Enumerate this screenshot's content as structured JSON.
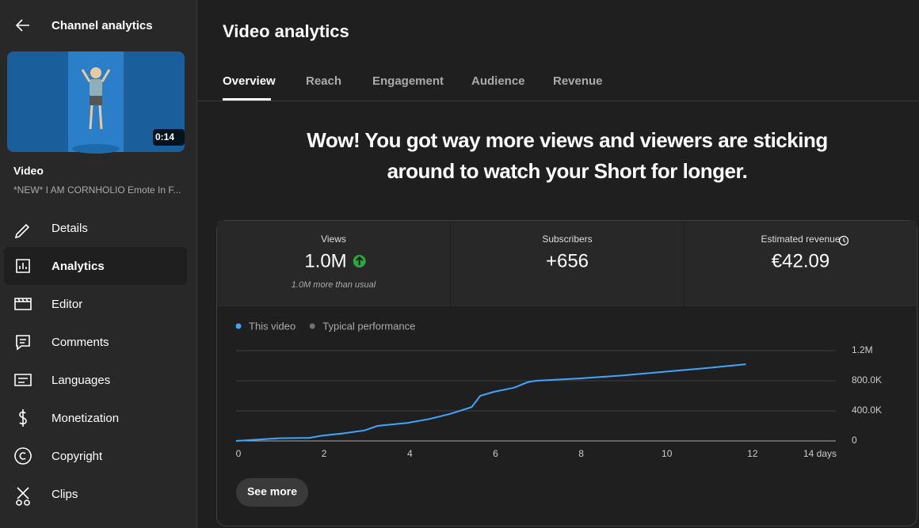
{
  "sidebar": {
    "title": "Channel analytics",
    "thumbnail_duration": "0:14",
    "video_label": "Video",
    "video_title": "*NEW* I AM CORNHOLIO Emote In F...",
    "menu": [
      "Details",
      "Analytics",
      "Editor",
      "Comments",
      "Languages",
      "Monetization",
      "Copyright",
      "Clips"
    ]
  },
  "header": {
    "title": "Video analytics",
    "tabs": [
      "Overview",
      "Reach",
      "Engagement",
      "Audience",
      "Revenue"
    ]
  },
  "headline": [
    "Wow! You got way more views and viewers are sticking",
    "around to watch your Short for longer."
  ],
  "metrics": [
    {
      "label": "Views",
      "value": "1.0M",
      "note": "1.0M more than usual"
    },
    {
      "label": "Subscribers",
      "value": "+656"
    },
    {
      "label": "Estimated revenue",
      "value": "€42.09"
    }
  ],
  "chart_data": {
    "type": "line",
    "x": [
      0,
      1,
      1.7,
      2,
      2.5,
      3,
      3.3,
      4,
      4.5,
      5,
      5.5,
      5.7,
      6,
      6.5,
      6.8,
      7,
      8,
      9,
      10,
      11,
      11.9
    ],
    "series": [
      {
        "name": "This video",
        "color": "#3ea6ff",
        "values": [
          0,
          35000,
          40000,
          70000,
          100000,
          140000,
          200000,
          240000,
          290000,
          360000,
          450000,
          600000,
          650000,
          710000,
          780000,
          800000,
          830000,
          870000,
          920000,
          970000,
          1020000
        ]
      },
      {
        "name": "Typical performance",
        "color": "#717171",
        "values": [
          null,
          null,
          null,
          null,
          null,
          null,
          null,
          null,
          null,
          null,
          null,
          null,
          null,
          null,
          null,
          null,
          null,
          null,
          null,
          null,
          null
        ]
      }
    ],
    "xlim": [
      0,
      14
    ],
    "xticks": [
      0,
      2,
      4,
      6,
      8,
      10,
      12,
      {
        "value": 14,
        "label": "14 days"
      }
    ],
    "ylim": [
      0,
      1200000
    ],
    "yticks": [
      0,
      {
        "value": 400000,
        "label": "400.0K"
      },
      {
        "value": 800000,
        "label": "800.0K"
      },
      {
        "value": 1200000,
        "label": "1.2M"
      }
    ],
    "grid": true
  },
  "button": "See more"
}
